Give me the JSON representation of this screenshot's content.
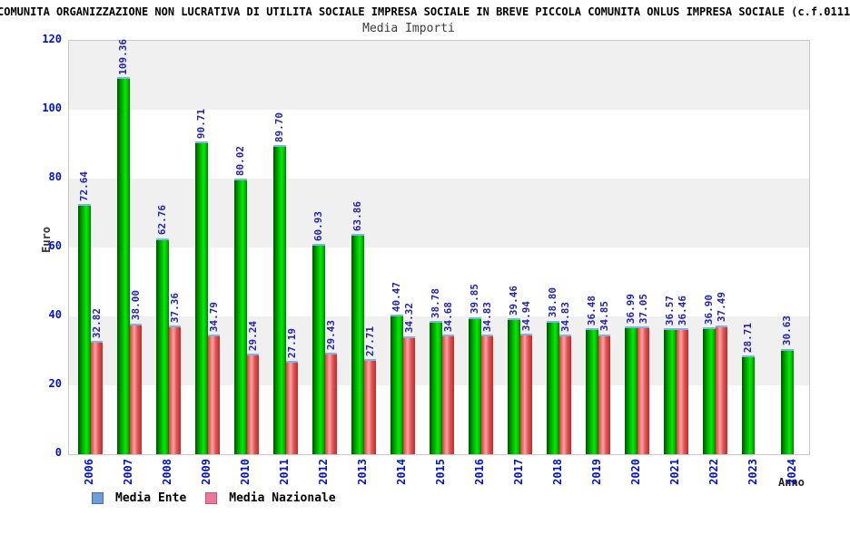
{
  "header": {
    "title_line": "COMUNITA ORGANIZZAZIONE NON LUCRATIVA DI UTILITA SOCIALE IMPRESA SOCIALE IN BREVE PICCOLA COMUNITA ONLUS IMPRESA SOCIALE (c.f.0111",
    "chart_title": "Media Importi"
  },
  "axes": {
    "y_label": "Euro",
    "x_label": "Anno",
    "y_ticks": [
      0,
      20,
      40,
      60,
      80,
      100,
      120
    ]
  },
  "legend": {
    "items": [
      {
        "label": "Media Ente",
        "swatch": "#6f9fd8",
        "border": "#3f6ea6"
      },
      {
        "label": "Media Nazionale",
        "swatch": "#ee7799",
        "border": "#c05580"
      }
    ]
  },
  "colors": {
    "bar_green": "#00cc00",
    "bar_red": "#e05555",
    "bar_cap_blue": "#7fb2e5",
    "value_label": "#2222aa",
    "axis_text_blue": "#0011cc",
    "band_gray": "#f0f0f0"
  },
  "chart_data": {
    "type": "bar",
    "title": "Media Importi",
    "xlabel": "Anno",
    "ylabel": "Euro",
    "ylim": [
      0,
      120
    ],
    "grid": "alternating horizontal bands every 20 units",
    "legend_position": "bottom-left",
    "categories": [
      "2006",
      "2007",
      "2008",
      "2009",
      "2010",
      "2011",
      "2012",
      "2013",
      "2014",
      "2015",
      "2016",
      "2017",
      "2018",
      "2019",
      "2020",
      "2021",
      "2022",
      "2023",
      "2024"
    ],
    "series": [
      {
        "name": "Media Ente",
        "values": [
          72.64,
          109.36,
          62.76,
          90.71,
          80.02,
          89.7,
          60.93,
          63.86,
          40.47,
          38.78,
          39.85,
          39.46,
          38.8,
          36.48,
          36.99,
          36.57,
          36.9,
          28.71,
          30.63
        ]
      },
      {
        "name": "Media Nazionale",
        "values": [
          32.82,
          38.0,
          37.36,
          34.79,
          29.24,
          27.19,
          29.43,
          27.71,
          34.32,
          34.68,
          34.83,
          34.94,
          34.83,
          34.85,
          37.05,
          36.46,
          37.49,
          null,
          null
        ]
      }
    ]
  }
}
